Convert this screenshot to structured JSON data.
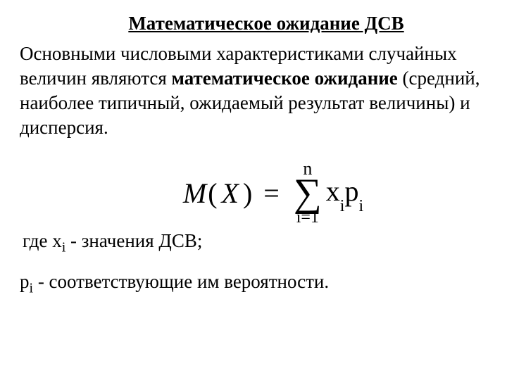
{
  "title": "Математическое ожидание ДСВ",
  "paragraph": {
    "part1": "Основными числовыми характеристиками случайных величин являются ",
    "bold": "математическое ожидание",
    "part2": " (средний, наиболее типичный, ожидаемый результат величины) и дисперсия."
  },
  "formula": {
    "lhs_M": "M",
    "lhs_paren_open": "(",
    "lhs_X": "X",
    "lhs_paren_close": ")",
    "eq": "=",
    "sum_top": "n",
    "sum_symbol": "∑",
    "sum_bot": "i=1",
    "x": "x",
    "xi": "i",
    "p": "p",
    "pi": "i"
  },
  "where": {
    "prefix": "где  x",
    "sub": "i",
    "rest": " - значения ДСВ;"
  },
  "probs": {
    "p": "p",
    "sub": "i",
    "rest": " - соответствующие им вероятности."
  },
  "style": {
    "body_font_size": 27,
    "formula_font_size": 40,
    "sigma_font_size": 56,
    "title_underline": true,
    "text_color": "#000000",
    "background_color": "#ffffff"
  }
}
